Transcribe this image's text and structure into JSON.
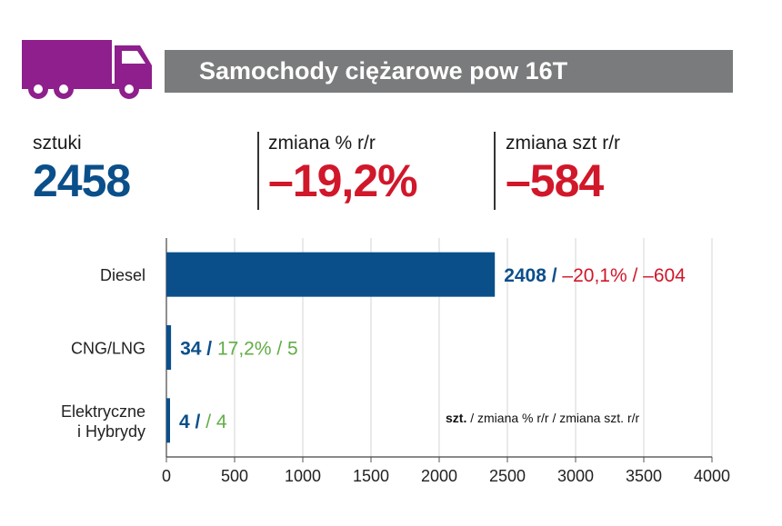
{
  "header": {
    "title": "Samochody ciężarowe pow 16T",
    "icon": "truck-icon",
    "icon_color": "#8e1f8c",
    "bar_color": "#7a7b7c"
  },
  "stats": [
    {
      "label": "sztuki",
      "value": "2458",
      "color": "#0b4f8a"
    },
    {
      "label": "zmiana % r/r",
      "value": "–19,2%",
      "color": "#d1172a"
    },
    {
      "label": "zmiana szt r/r",
      "value": "–584",
      "color": "#d1172a"
    }
  ],
  "chart_data": {
    "type": "bar",
    "orientation": "horizontal",
    "categories": [
      "Diesel",
      "CNG/LNG",
      "Elektryczne i Hybrydy"
    ],
    "category_lines": [
      [
        "Diesel"
      ],
      [
        "CNG/LNG"
      ],
      [
        "Elektryczne",
        "i Hybrydy"
      ]
    ],
    "values": [
      2408,
      34,
      4
    ],
    "xlim": [
      0,
      4000
    ],
    "x_ticks": [
      0,
      500,
      1000,
      1500,
      2000,
      2500,
      3000,
      3500,
      4000
    ],
    "grid": true,
    "bar_color": "#0b4f8a",
    "labels": [
      {
        "count": "2408 /",
        "change_pct": "–20,1% /",
        "change_units": "–604",
        "change_color": "#d1172a"
      },
      {
        "count": "34 /",
        "change_pct": "17,2% /",
        "change_units": "5",
        "change_color": "#62ad46"
      },
      {
        "count": "4 /",
        "change_pct": "/",
        "change_units": "4",
        "change_color": "#62ad46"
      }
    ],
    "caption": {
      "bold": "szt.",
      "rest": " / zmiana % r/r / zmiana szt. r/r"
    }
  }
}
